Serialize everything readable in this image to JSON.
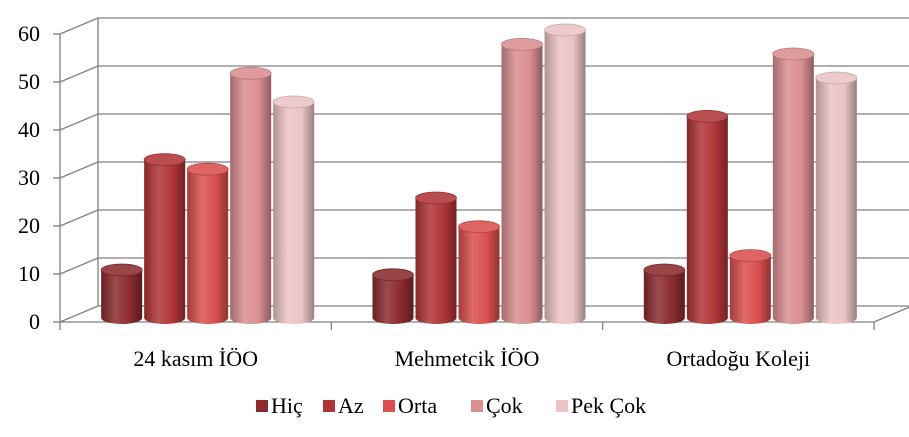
{
  "chart_data": {
    "type": "bar",
    "variant": "3d-cylinder",
    "categories": [
      "24 kasım İÖO",
      "Mehmetcik İÖO",
      "Ortadoğu Koleji"
    ],
    "series": [
      {
        "name": "Hiç",
        "values": [
          10,
          9,
          10
        ],
        "color": "#8B2B2E"
      },
      {
        "name": "Az",
        "values": [
          33,
          25,
          42
        ],
        "color": "#B03538"
      },
      {
        "name": "Orta",
        "values": [
          31,
          19,
          13
        ],
        "color": "#D9504E"
      },
      {
        "name": "Çok",
        "values": [
          51,
          57,
          55
        ],
        "color": "#D98E90"
      },
      {
        "name": "Pek Çok",
        "values": [
          45,
          60,
          50
        ],
        "color": "#EBC3C4"
      }
    ],
    "yticks": [
      "0",
      "10",
      "20",
      "30",
      "40",
      "50",
      "60"
    ],
    "ylim": [
      0,
      60
    ],
    "grid": true,
    "legend_position": "bottom"
  }
}
